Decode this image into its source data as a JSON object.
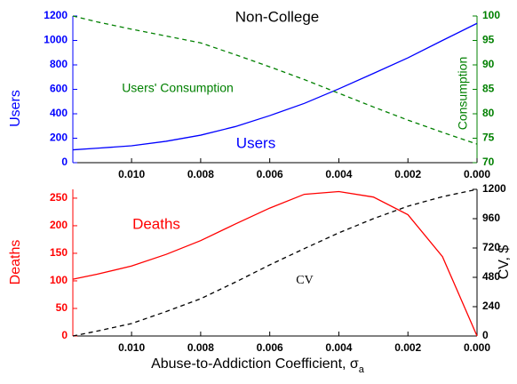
{
  "chart_data": [
    {
      "type": "line",
      "title": "Non-College",
      "ylabel": "Users",
      "y2label": "Consumption",
      "ycolor": "#0000ff",
      "y2color": "#008000",
      "annotations": [
        {
          "text": "Users' Consumption",
          "color": "#008000"
        },
        {
          "text": "Users",
          "color": "#0000ff"
        }
      ],
      "x": [
        0.0117,
        0.011,
        0.01,
        0.009,
        0.008,
        0.007,
        0.006,
        0.005,
        0.004,
        0.003,
        0.002,
        0.001,
        0
      ],
      "xlim": [
        0.0117,
        0
      ],
      "xticks": [
        {
          "value": 0.01,
          "label": "0.010"
        },
        {
          "value": 0.008,
          "label": "0.008"
        },
        {
          "value": 0.006,
          "label": "0.006"
        },
        {
          "value": 0.004,
          "label": "0.004"
        },
        {
          "value": 0.002,
          "label": "0.002"
        },
        {
          "value": 0,
          "label": "0.000"
        }
      ],
      "ylim": [
        0,
        1200
      ],
      "yticks": [
        0,
        200,
        400,
        600,
        800,
        1000,
        1200
      ],
      "y2lim": [
        70,
        100
      ],
      "y2ticks": [
        70,
        75,
        80,
        85,
        90,
        95,
        100
      ],
      "series": [
        {
          "name": "Users",
          "color": "#0000ff",
          "style": "solid",
          "values": [
            105,
            118,
            138,
            175,
            225,
            295,
            385,
            485,
            604,
            730,
            858,
            1000,
            1140
          ]
        },
        {
          "name": "Users' Consumption",
          "color": "#008000",
          "style": "dashed",
          "axis": "y2",
          "values": [
            100,
            98.8,
            97.3,
            95.9,
            94.5,
            92.1,
            89.6,
            87,
            84.2,
            81.4,
            78.7,
            76.2,
            73.8
          ]
        }
      ]
    },
    {
      "type": "line",
      "ylabel": "Deaths",
      "y2label": "CV, $",
      "xlabel": "Abuse-to-Addiction Coefficient, σ",
      "xlabel_sub": "a",
      "ycolor": "#ff0000",
      "y2color": "#000000",
      "annotations": [
        {
          "text": "Deaths",
          "color": "#ff0000"
        },
        {
          "text": "CV",
          "color": "#000000"
        }
      ],
      "x": [
        0.0117,
        0.011,
        0.01,
        0.009,
        0.008,
        0.007,
        0.006,
        0.005,
        0.004,
        0.003,
        0.002,
        0.001,
        0
      ],
      "xlim": [
        0.0117,
        0
      ],
      "xticks": [
        {
          "value": 0.01,
          "label": "0.010"
        },
        {
          "value": 0.008,
          "label": "0.008"
        },
        {
          "value": 0.006,
          "label": "0.006"
        },
        {
          "value": 0.004,
          "label": "0.004"
        },
        {
          "value": 0.002,
          "label": "0.002"
        },
        {
          "value": 0,
          "label": "0.000"
        }
      ],
      "ylim": [
        0,
        266
      ],
      "yticks": [
        0,
        50,
        100,
        150,
        200,
        250
      ],
      "y2lim": [
        0,
        1200
      ],
      "y2ticks": [
        0,
        240,
        480,
        720,
        960,
        1200
      ],
      "series": [
        {
          "name": "Deaths",
          "color": "#ff0000",
          "style": "solid",
          "values": [
            103,
            112,
            127,
            148,
            173,
            203,
            232,
            257,
            262,
            252,
            220,
            144,
            0
          ]
        },
        {
          "name": "CV",
          "color": "#000000",
          "style": "dashed",
          "axis": "y2",
          "values": [
            0,
            40,
            102,
            200,
            305,
            440,
            582,
            715,
            844,
            960,
            1062,
            1140,
            1200
          ]
        }
      ]
    }
  ]
}
